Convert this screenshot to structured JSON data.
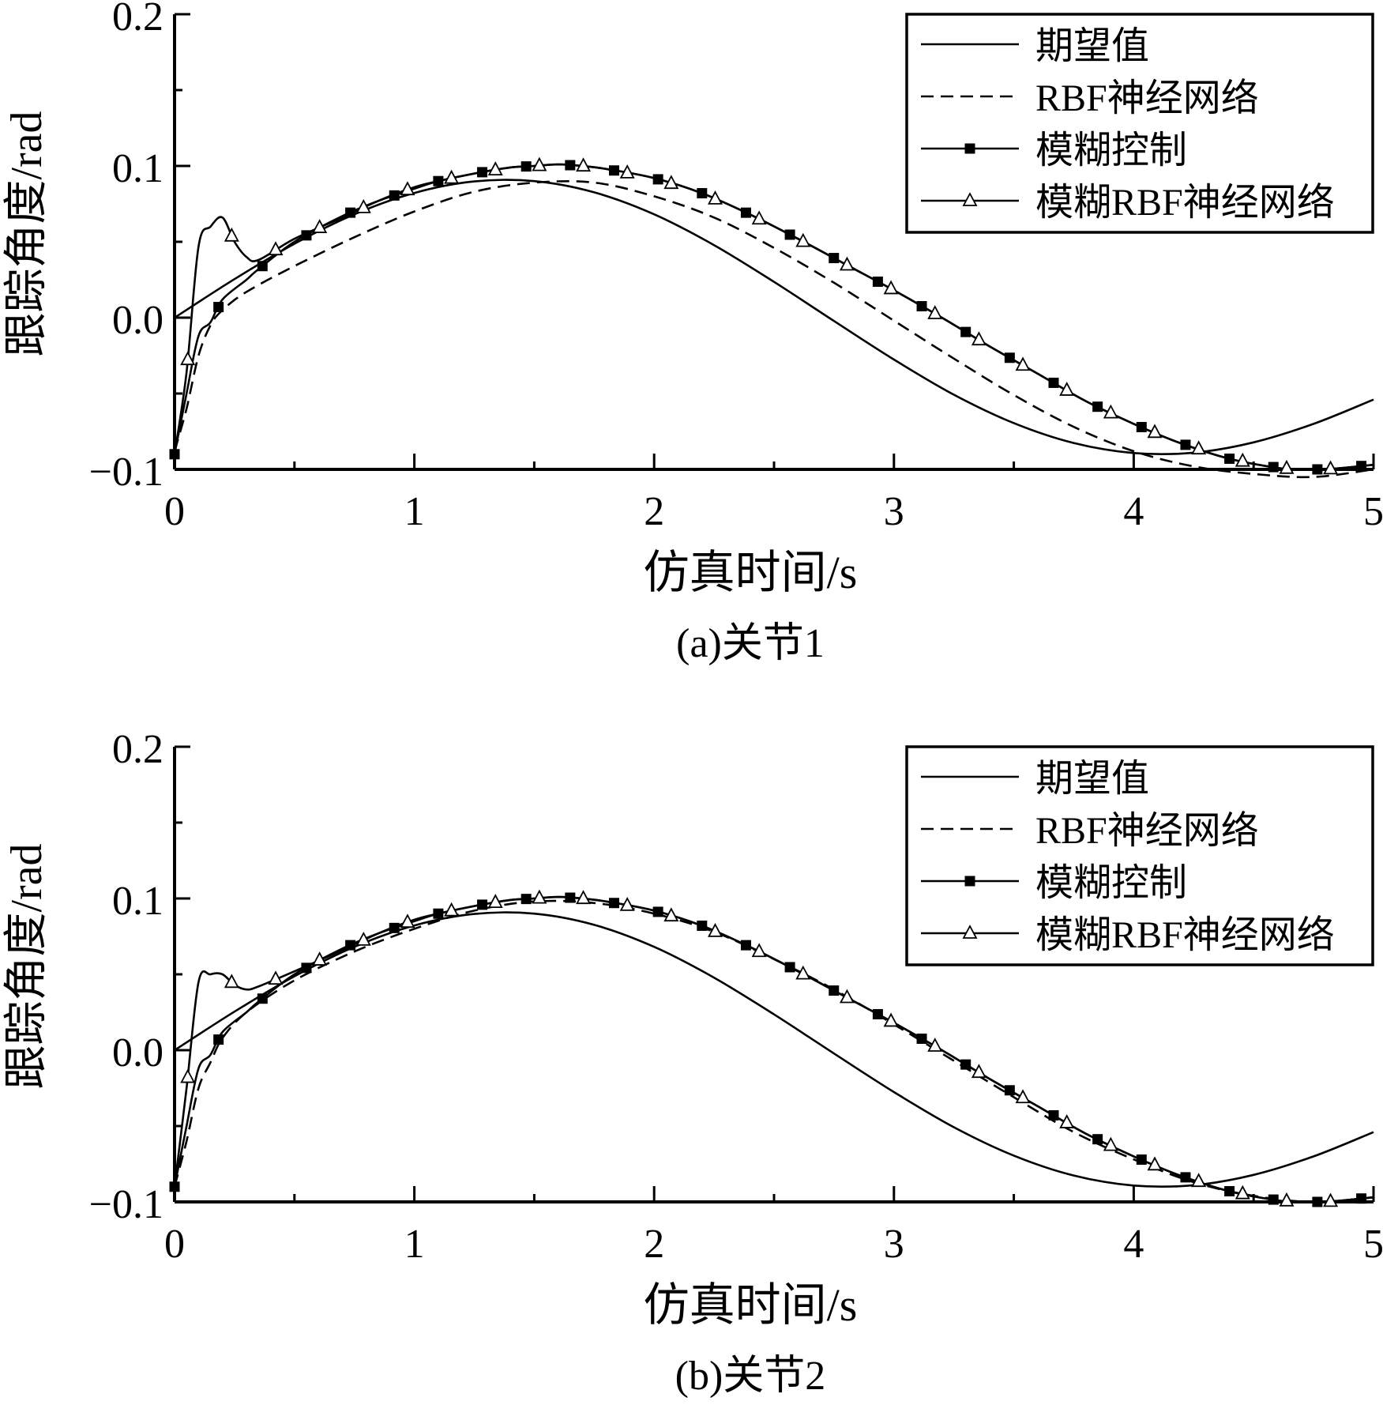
{
  "panels": [
    {
      "caption": "(a)关节1",
      "chart_data": {
        "type": "line",
        "xlabel": "仿真时间/s",
        "ylabel": "跟踪角度/rad",
        "xlim": [
          0,
          5
        ],
        "ylim": [
          -0.1,
          0.2
        ],
        "xticks": [
          0,
          1,
          2,
          3,
          4,
          5
        ],
        "xtick_labels": [
          "0",
          "1",
          "2",
          "3",
          "4",
          "5"
        ],
        "yticks": [
          -0.1,
          0.0,
          0.1,
          0.2
        ],
        "ytick_labels": [
          "−0.1",
          "0.0",
          "0.1",
          "0.2"
        ],
        "grid": false,
        "legend_position": "top-right",
        "series": [
          {
            "name": "期望值",
            "style": "solid",
            "marker": "none",
            "x": [
              0,
              0.25,
              0.5,
              0.75,
              1.0,
              1.25,
              1.5,
              1.75,
              2.0,
              2.25,
              2.5,
              2.75,
              3.0,
              3.25,
              3.5,
              3.75,
              4.0,
              4.25,
              4.5,
              4.75,
              5.0
            ],
            "y": [
              0,
              0.0254,
              0.0487,
              0.0681,
              0.0822,
              0.0898,
              0.09,
              0.0826,
              0.0681,
              0.0478,
              0.0236,
              -0.0022,
              -0.0276,
              -0.0508,
              -0.0695,
              -0.0826,
              -0.0892,
              -0.089,
              -0.0822,
              -0.07,
              -0.054
            ]
          },
          {
            "name": "RBF神经网络",
            "style": "dashed",
            "marker": "none",
            "x": [
              0,
              0.05,
              0.1,
              0.15,
              0.2,
              0.3,
              0.5,
              0.75,
              1.0,
              1.25,
              1.5,
              1.75,
              2.0,
              2.25,
              2.5,
              2.75,
              3.0,
              3.25,
              3.5,
              3.75,
              4.0,
              4.25,
              4.5,
              4.75,
              5.0
            ],
            "y": [
              -0.088,
              -0.06,
              -0.025,
              -0.005,
              0.005,
              0.017,
              0.034,
              0.053,
              0.07,
              0.083,
              0.089,
              0.089,
              0.08,
              0.066,
              0.046,
              0.023,
              -0.002,
              -0.027,
              -0.051,
              -0.072,
              -0.088,
              -0.098,
              -0.103,
              -0.105,
              -0.1
            ]
          },
          {
            "name": "模糊控制",
            "style": "solid",
            "marker": "filled-square",
            "x": [
              0,
              0.05,
              0.1,
              0.15,
              0.2,
              0.3,
              0.35,
              0.5,
              0.7,
              0.85,
              1.0,
              1.1,
              1.25,
              1.4,
              1.5,
              1.6,
              1.7,
              1.8,
              2.0,
              2.2,
              2.4,
              2.6,
              2.8,
              3.0,
              3.2,
              3.4,
              3.6,
              3.8,
              4.0,
              4.2,
              4.4,
              4.6,
              4.7,
              4.8,
              5.0
            ],
            "y": [
              -0.09,
              -0.05,
              -0.012,
              -0.003,
              0.012,
              0.025,
              0.032,
              0.05,
              0.067,
              0.077,
              0.085,
              0.09,
              0.095,
              0.099,
              0.1,
              0.101,
              0.1,
              0.098,
              0.092,
              0.082,
              0.068,
              0.052,
              0.035,
              0.018,
              0.0,
              -0.019,
              -0.037,
              -0.055,
              -0.07,
              -0.083,
              -0.093,
              -0.099,
              -0.1,
              -0.1,
              -0.097
            ]
          },
          {
            "name": "模糊RBF神经网络",
            "style": "solid",
            "marker": "open-triangle",
            "x": [
              0,
              0.05,
              0.1,
              0.15,
              0.2,
              0.25,
              0.3,
              0.35,
              0.5,
              0.7,
              0.85,
              1.0,
              1.1,
              1.25,
              1.4,
              1.5,
              1.6,
              1.7,
              1.8,
              2.0,
              2.2,
              2.4,
              2.6,
              2.8,
              3.0,
              3.2,
              3.4,
              3.6,
              3.8,
              4.0,
              4.2,
              4.4,
              4.6,
              4.7,
              4.8,
              5.0
            ],
            "y": [
              -0.09,
              -0.036,
              0.047,
              0.06,
              0.066,
              0.05,
              0.04,
              0.038,
              0.052,
              0.066,
              0.077,
              0.086,
              0.09,
              0.095,
              0.099,
              0.1,
              0.101,
              0.1,
              0.098,
              0.092,
              0.082,
              0.068,
              0.052,
              0.035,
              0.018,
              0.0,
              -0.019,
              -0.037,
              -0.055,
              -0.07,
              -0.083,
              -0.093,
              -0.099,
              -0.1,
              -0.1,
              -0.097
            ]
          }
        ]
      }
    },
    {
      "caption": "(b)关节2",
      "chart_data": {
        "type": "line",
        "xlabel": "仿真时间/s",
        "ylabel": "跟踪角度/rad",
        "xlim": [
          0,
          5
        ],
        "ylim": [
          -0.1,
          0.2
        ],
        "xticks": [
          0,
          1,
          2,
          3,
          4,
          5
        ],
        "xtick_labels": [
          "0",
          "1",
          "2",
          "3",
          "4",
          "5"
        ],
        "yticks": [
          -0.1,
          0.0,
          0.1,
          0.2
        ],
        "ytick_labels": [
          "−0.1",
          "0.0",
          "0.1",
          "0.2"
        ],
        "grid": false,
        "legend_position": "top-right",
        "series": [
          {
            "name": "期望值",
            "style": "solid",
            "marker": "none",
            "x": [
              0,
              0.25,
              0.5,
              0.75,
              1.0,
              1.25,
              1.5,
              1.75,
              2.0,
              2.25,
              2.5,
              2.75,
              3.0,
              3.25,
              3.5,
              3.75,
              4.0,
              4.25,
              4.5,
              4.75,
              5.0
            ],
            "y": [
              0,
              0.0254,
              0.0487,
              0.0681,
              0.0822,
              0.0898,
              0.09,
              0.0826,
              0.0681,
              0.0478,
              0.0236,
              -0.0022,
              -0.0276,
              -0.0508,
              -0.0695,
              -0.0826,
              -0.0892,
              -0.089,
              -0.0822,
              -0.07,
              -0.054
            ]
          },
          {
            "name": "RBF神经网络",
            "style": "dashed",
            "marker": "none",
            "x": [
              0,
              0.05,
              0.1,
              0.15,
              0.2,
              0.3,
              0.5,
              0.75,
              1.0,
              1.25,
              1.5,
              1.75,
              2.0,
              2.25,
              2.5,
              2.75,
              3.0,
              3.25,
              3.5,
              3.75,
              4.0,
              4.25,
              4.5,
              4.75,
              5.0
            ],
            "y": [
              -0.09,
              -0.06,
              -0.025,
              -0.008,
              0.008,
              0.025,
              0.046,
              0.065,
              0.08,
              0.092,
              0.098,
              0.097,
              0.09,
              0.078,
              0.06,
              0.04,
              0.017,
              -0.007,
              -0.031,
              -0.054,
              -0.072,
              -0.087,
              -0.096,
              -0.1,
              -0.097
            ]
          },
          {
            "name": "模糊控制",
            "style": "solid",
            "marker": "filled-square",
            "x": [
              0,
              0.05,
              0.1,
              0.15,
              0.2,
              0.3,
              0.35,
              0.5,
              0.7,
              0.85,
              1.0,
              1.1,
              1.25,
              1.4,
              1.5,
              1.6,
              1.7,
              1.8,
              2.0,
              2.2,
              2.4,
              2.6,
              2.8,
              3.0,
              3.2,
              3.4,
              3.6,
              3.8,
              4.0,
              4.2,
              4.4,
              4.6,
              4.7,
              4.8,
              5.0
            ],
            "y": [
              -0.09,
              -0.05,
              -0.012,
              -0.003,
              0.012,
              0.025,
              0.032,
              0.05,
              0.067,
              0.077,
              0.085,
              0.09,
              0.095,
              0.099,
              0.1,
              0.101,
              0.1,
              0.098,
              0.092,
              0.082,
              0.068,
              0.052,
              0.035,
              0.018,
              0.0,
              -0.019,
              -0.037,
              -0.055,
              -0.07,
              -0.083,
              -0.093,
              -0.099,
              -0.1,
              -0.1,
              -0.097
            ]
          },
          {
            "name": "模糊RBF神经网络",
            "style": "solid",
            "marker": "open-triangle",
            "x": [
              0,
              0.05,
              0.1,
              0.15,
              0.2,
              0.25,
              0.3,
              0.35,
              0.5,
              0.7,
              0.85,
              1.0,
              1.1,
              1.25,
              1.4,
              1.5,
              1.6,
              1.7,
              1.8,
              2.0,
              2.2,
              2.4,
              2.6,
              2.8,
              3.0,
              3.2,
              3.4,
              3.6,
              3.8,
              4.0,
              4.2,
              4.4,
              4.6,
              4.7,
              4.8,
              5.0
            ],
            "y": [
              -0.09,
              -0.025,
              0.045,
              0.05,
              0.05,
              0.043,
              0.04,
              0.042,
              0.052,
              0.066,
              0.077,
              0.086,
              0.09,
              0.095,
              0.099,
              0.1,
              0.101,
              0.1,
              0.098,
              0.092,
              0.082,
              0.068,
              0.052,
              0.035,
              0.018,
              0.0,
              -0.019,
              -0.037,
              -0.055,
              -0.07,
              -0.083,
              -0.093,
              -0.099,
              -0.1,
              -0.1,
              -0.097
            ]
          }
        ]
      }
    }
  ]
}
